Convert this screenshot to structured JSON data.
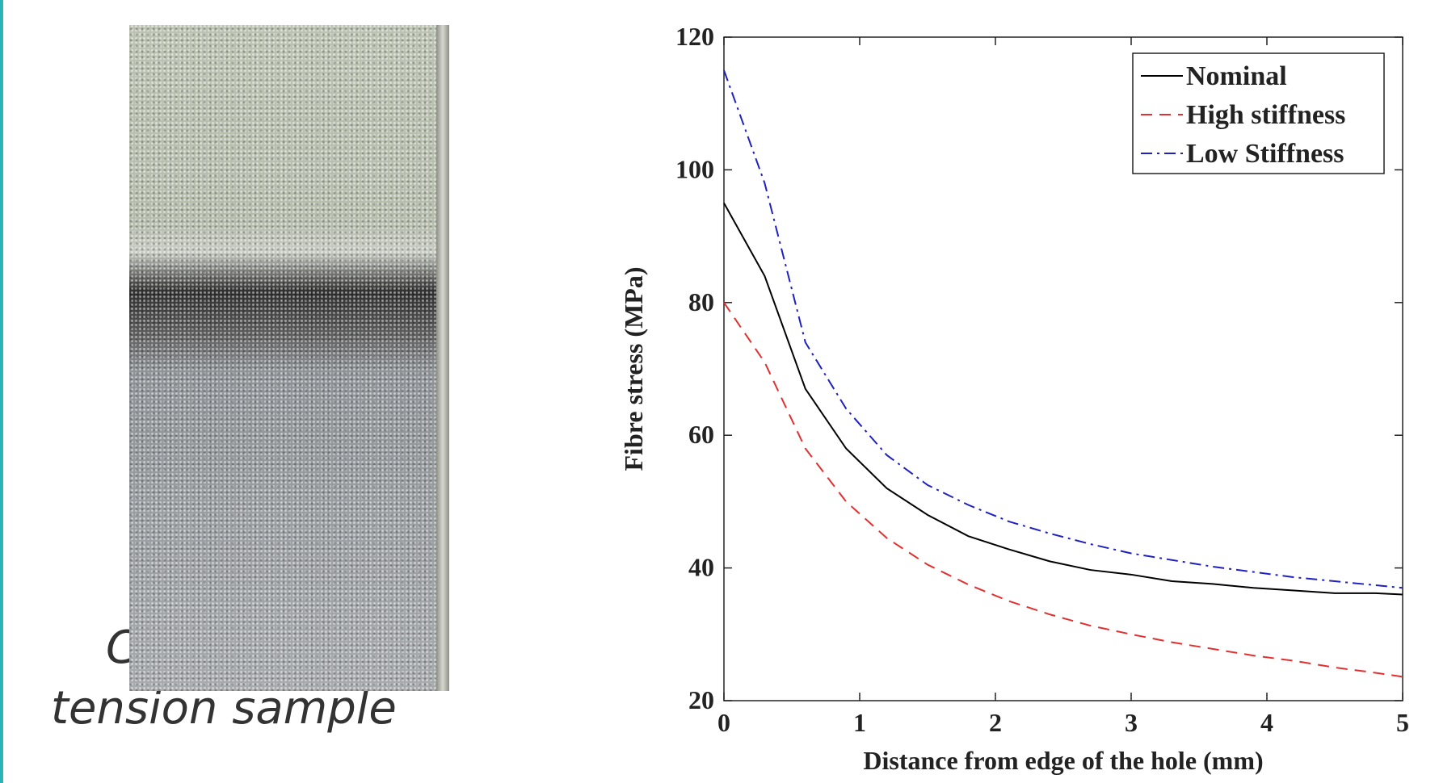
{
  "caption": [
    "C",
    "tension sample"
  ],
  "chart_data": {
    "type": "line",
    "xlabel": "Distance from edge of the hole (mm)",
    "ylabel": "Fibre stress (MPa)",
    "x": [
      0,
      0.3,
      0.6,
      0.9,
      1.2,
      1.5,
      1.8,
      2.1,
      2.4,
      2.7,
      3.0,
      3.3,
      3.6,
      3.9,
      4.2,
      4.5,
      4.8,
      5
    ],
    "series": [
      {
        "name": "Nominal",
        "color": "#000000",
        "linestyle": "solid",
        "values": [
          95,
          84,
          67,
          58,
          52,
          48,
          44.8,
          42.8,
          41,
          39.7,
          39,
          38,
          37.6,
          37,
          36.6,
          36.2,
          36.2,
          36
        ]
      },
      {
        "name": "High stiffness",
        "color": "#e03030",
        "linestyle": "dashed",
        "values": [
          80,
          71,
          58,
          50,
          44.5,
          40.5,
          37.5,
          35,
          33,
          31.3,
          30,
          28.8,
          27.8,
          26.8,
          26,
          25,
          24.2,
          23.6
        ]
      },
      {
        "name": "Low Stiffness",
        "color": "#2020c0",
        "linestyle": "dashdot",
        "values": [
          115,
          98,
          74,
          64,
          57,
          52.5,
          49.5,
          47,
          45.2,
          43.6,
          42.2,
          41.2,
          40.2,
          39.4,
          38.6,
          38,
          37.4,
          37
        ]
      }
    ],
    "xlim": [
      0,
      5
    ],
    "xticks": [
      0,
      1,
      2,
      3,
      4,
      5
    ],
    "ylim": [
      20,
      120
    ],
    "yticks": [
      20,
      40,
      60,
      80,
      100,
      120
    ],
    "legend": "upper right",
    "grid": false
  }
}
